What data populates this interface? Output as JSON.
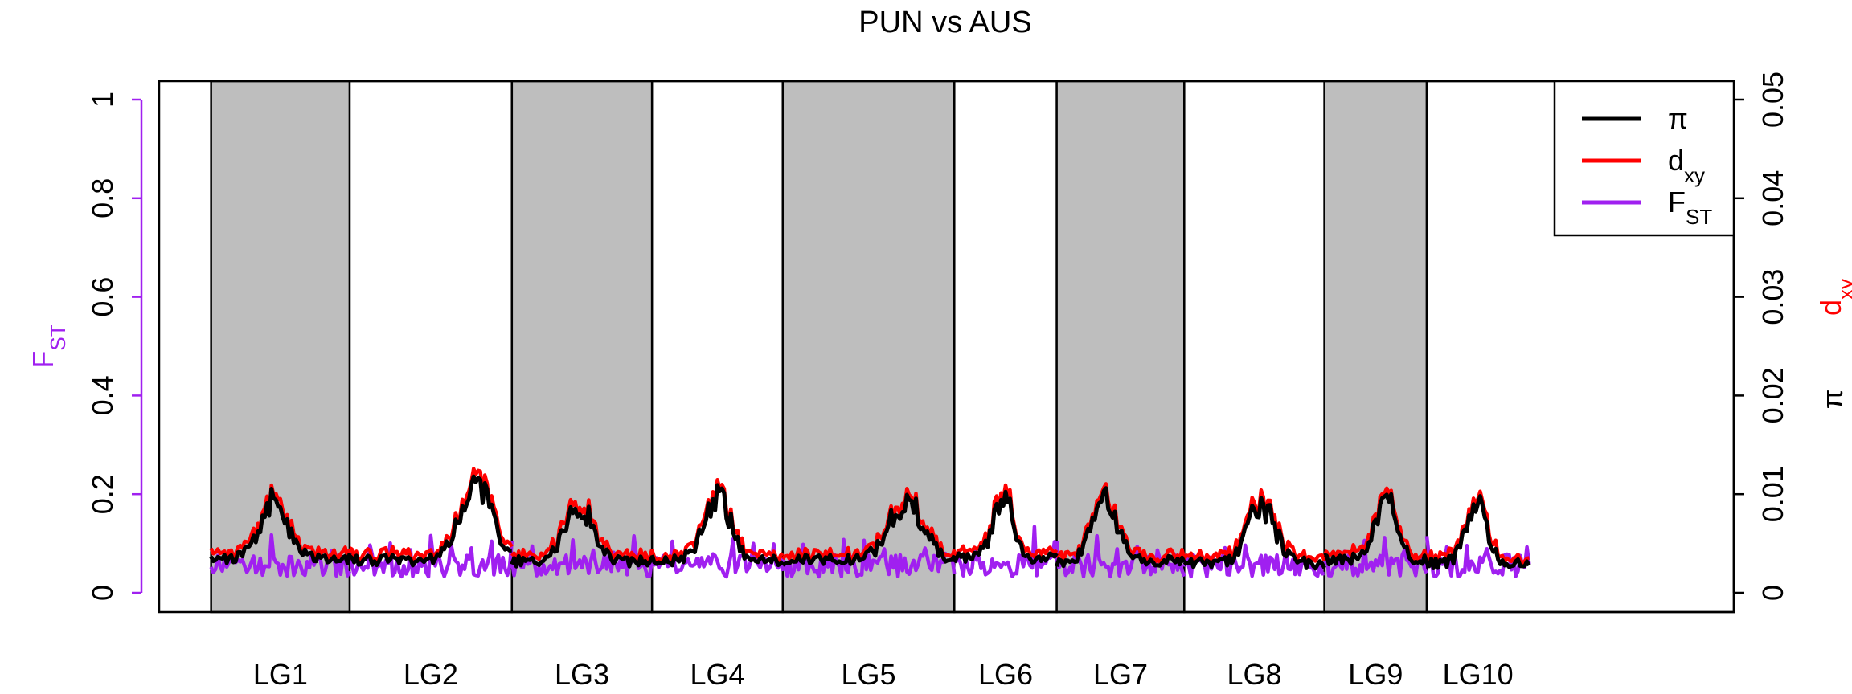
{
  "chart_data": {
    "type": "line",
    "title": "PUN vs AUS",
    "left_axis": {
      "label": "F",
      "label_sub": "ST",
      "ylim": [
        0,
        1
      ],
      "ticks": [
        "0",
        "0.2",
        "0.4",
        "0.6",
        "0.8",
        "1"
      ],
      "tick_values": [
        0,
        0.2,
        0.4,
        0.6,
        0.8,
        1.0
      ],
      "color": "#a020f0"
    },
    "right_axis": {
      "label_dxy": "d",
      "label_dxy_sub": "xy",
      "label_pi": "π",
      "ylim": [
        0,
        0.05
      ],
      "ticks": [
        "0",
        "0.01",
        "0.02",
        "0.03",
        "0.04",
        "0.05"
      ],
      "tick_values": [
        0,
        0.01,
        0.02,
        0.03,
        0.04,
        0.05
      ],
      "dxy_color": "#ff0000",
      "pi_color": "#000000"
    },
    "x_range": [
      0,
      100
    ],
    "linkage_groups": [
      {
        "name": "LG1",
        "start": 3.3,
        "end": 12.1,
        "shaded": true
      },
      {
        "name": "LG2",
        "start": 12.1,
        "end": 22.4,
        "shaded": false
      },
      {
        "name": "LG3",
        "start": 22.4,
        "end": 31.3,
        "shaded": true
      },
      {
        "name": "LG4",
        "start": 31.3,
        "end": 39.6,
        "shaded": false
      },
      {
        "name": "LG5",
        "start": 39.6,
        "end": 50.5,
        "shaded": true
      },
      {
        "name": "LG6",
        "start": 50.5,
        "end": 57.0,
        "shaded": false
      },
      {
        "name": "LG7",
        "start": 57.0,
        "end": 65.1,
        "shaded": true
      },
      {
        "name": "LG8",
        "start": 65.1,
        "end": 74.0,
        "shaded": false
      },
      {
        "name": "LG9",
        "start": 74.0,
        "end": 80.5,
        "shaded": true
      },
      {
        "name": "LG10",
        "start": 80.5,
        "end": 100,
        "shaded": false
      }
    ],
    "data_extent": [
      3.3,
      87.0
    ],
    "series": [
      {
        "name": "π",
        "key": "pi",
        "color": "#000000",
        "axis": "right"
      },
      {
        "name": "d",
        "name_sub": "xy",
        "key": "dxy",
        "color": "#ff0000",
        "axis": "right"
      },
      {
        "name": "F",
        "name_sub": "ST",
        "key": "fst",
        "color": "#a020f0",
        "axis": "left"
      }
    ],
    "shade_color": "#bebebe",
    "legend_position": "top-right"
  }
}
